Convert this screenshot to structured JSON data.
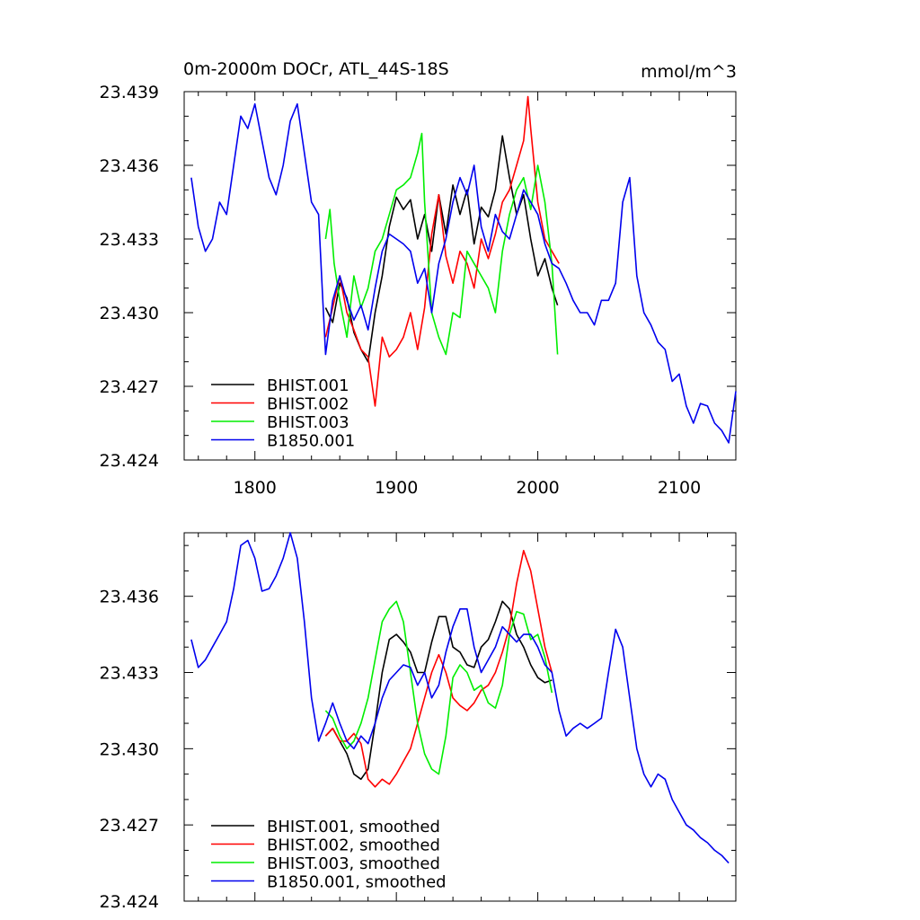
{
  "chart_data": [
    {
      "type": "line",
      "title": "0m-2000m DOCr, ATL_44S-18S",
      "units": "mmol/m^3",
      "xlim": [
        1750,
        2140
      ],
      "ylim": [
        23.424,
        23.439
      ],
      "xticks": [
        1800,
        1900,
        2000,
        2100
      ],
      "xtick_labels": [
        "1800",
        "1900",
        "2000",
        "2100"
      ],
      "yticks": [
        23.424,
        23.427,
        23.43,
        23.433,
        23.436,
        23.439
      ],
      "ytick_labels": [
        "23.424",
        "23.427",
        "23.430",
        "23.433",
        "23.436",
        "23.439"
      ],
      "legend_position": "bottom-left",
      "series": [
        {
          "name": "BHIST.001",
          "color": "#000000",
          "x": [
            1850,
            1855,
            1860,
            1865,
            1870,
            1875,
            1880,
            1885,
            1890,
            1895,
            1900,
            1905,
            1910,
            1915,
            1920,
            1925,
            1930,
            1935,
            1940,
            1945,
            1950,
            1955,
            1960,
            1965,
            1970,
            1975,
            1980,
            1985,
            1990,
            1995,
            2000,
            2005,
            2010,
            2014
          ],
          "y": [
            23.4302,
            23.4296,
            23.4312,
            23.4306,
            23.4292,
            23.4285,
            23.428,
            23.43,
            23.4315,
            23.4335,
            23.4347,
            23.4342,
            23.4346,
            23.433,
            23.434,
            23.4325,
            23.4348,
            23.4332,
            23.4352,
            23.434,
            23.435,
            23.4328,
            23.4343,
            23.4339,
            23.435,
            23.4372,
            23.4355,
            23.434,
            23.4348,
            23.433,
            23.4315,
            23.4322,
            23.431,
            23.4303
          ]
        },
        {
          "name": "BHIST.002",
          "color": "#ff0000",
          "x": [
            1850,
            1855,
            1860,
            1865,
            1870,
            1875,
            1880,
            1885,
            1890,
            1895,
            1900,
            1905,
            1910,
            1915,
            1920,
            1925,
            1930,
            1935,
            1940,
            1945,
            1950,
            1955,
            1960,
            1965,
            1970,
            1975,
            1980,
            1985,
            1990,
            1993,
            1995,
            2000,
            2005,
            2010,
            2015
          ],
          "y": [
            23.429,
            23.4302,
            23.4315,
            23.43,
            23.4293,
            23.4285,
            23.4282,
            23.4262,
            23.429,
            23.4282,
            23.4285,
            23.429,
            23.43,
            23.4285,
            23.4302,
            23.4332,
            23.4348,
            23.4323,
            23.4312,
            23.4325,
            23.432,
            23.431,
            23.433,
            23.4322,
            23.4332,
            23.4345,
            23.435,
            23.436,
            23.437,
            23.4388,
            23.4375,
            23.4345,
            23.433,
            23.4325,
            23.432
          ]
        },
        {
          "name": "BHIST.003",
          "color": "#00ee00",
          "x": [
            1850,
            1853,
            1856,
            1860,
            1865,
            1870,
            1875,
            1880,
            1885,
            1890,
            1895,
            1900,
            1905,
            1910,
            1915,
            1918,
            1920,
            1925,
            1930,
            1935,
            1940,
            1945,
            1950,
            1955,
            1960,
            1965,
            1970,
            1975,
            1980,
            1985,
            1990,
            1995,
            2000,
            2005,
            2010,
            2014
          ],
          "y": [
            23.433,
            23.4342,
            23.432,
            23.4305,
            23.429,
            23.4315,
            23.4302,
            23.431,
            23.4325,
            23.433,
            23.434,
            23.435,
            23.4352,
            23.4355,
            23.4365,
            23.4373,
            23.4345,
            23.43,
            23.429,
            23.4283,
            23.43,
            23.4298,
            23.4325,
            23.432,
            23.4315,
            23.431,
            23.43,
            23.4325,
            23.434,
            23.435,
            23.4355,
            23.4342,
            23.436,
            23.4345,
            23.432,
            23.4283
          ]
        },
        {
          "name": "B1850.001",
          "color": "#0000ee",
          "x": [
            1755,
            1760,
            1765,
            1770,
            1775,
            1780,
            1785,
            1790,
            1795,
            1800,
            1805,
            1810,
            1815,
            1820,
            1825,
            1830,
            1835,
            1840,
            1845,
            1848,
            1850,
            1855,
            1860,
            1865,
            1870,
            1875,
            1880,
            1885,
            1890,
            1895,
            1900,
            1905,
            1910,
            1915,
            1920,
            1925,
            1930,
            1935,
            1940,
            1945,
            1950,
            1955,
            1960,
            1965,
            1970,
            1975,
            1980,
            1985,
            1990,
            1995,
            2000,
            2005,
            2010,
            2015,
            2020,
            2025,
            2030,
            2035,
            2040,
            2045,
            2050,
            2055,
            2060,
            2065,
            2070,
            2075,
            2080,
            2085,
            2090,
            2095,
            2100,
            2105,
            2110,
            2115,
            2120,
            2125,
            2130,
            2135,
            2140
          ],
          "y": [
            23.4355,
            23.4335,
            23.4325,
            23.433,
            23.4345,
            23.434,
            23.436,
            23.438,
            23.4375,
            23.4385,
            23.437,
            23.4355,
            23.4348,
            23.436,
            23.4378,
            23.4385,
            23.4365,
            23.4345,
            23.434,
            23.4305,
            23.4283,
            23.4305,
            23.4315,
            23.4305,
            23.4297,
            23.4303,
            23.4293,
            23.431,
            23.4325,
            23.4332,
            23.433,
            23.4328,
            23.4325,
            23.4312,
            23.4318,
            23.43,
            23.432,
            23.433,
            23.4345,
            23.4355,
            23.4348,
            23.436,
            23.4335,
            23.4325,
            23.434,
            23.4333,
            23.433,
            23.434,
            23.435,
            23.4345,
            23.434,
            23.4328,
            23.432,
            23.4318,
            23.4312,
            23.4305,
            23.43,
            23.43,
            23.4295,
            23.4305,
            23.4305,
            23.4312,
            23.4345,
            23.4355,
            23.4315,
            23.43,
            23.4295,
            23.4288,
            23.4285,
            23.4272,
            23.4275,
            23.4262,
            23.4255,
            23.4263,
            23.4262,
            23.4255,
            23.4252,
            23.4247,
            23.4268
          ]
        }
      ]
    },
    {
      "type": "line",
      "xlim": [
        1750,
        2140
      ],
      "ylim": [
        23.424,
        23.4385
      ],
      "xticks": [
        1800,
        1900,
        2000,
        2100
      ],
      "yticks": [
        23.424,
        23.427,
        23.43,
        23.433,
        23.436
      ],
      "ytick_labels": [
        "23.424",
        "23.427",
        "23.430",
        "23.433",
        "23.436"
      ],
      "legend_position": "bottom-left",
      "series": [
        {
          "name": "BHIST.001, smoothed",
          "color": "#000000",
          "x": [
            1850,
            1855,
            1860,
            1865,
            1870,
            1875,
            1880,
            1885,
            1890,
            1895,
            1900,
            1905,
            1910,
            1915,
            1920,
            1925,
            1930,
            1935,
            1940,
            1945,
            1950,
            1955,
            1960,
            1965,
            1970,
            1975,
            1980,
            1985,
            1990,
            1995,
            2000,
            2005,
            2010
          ],
          "y": [
            23.4305,
            23.4308,
            23.4303,
            23.4298,
            23.429,
            23.4288,
            23.4292,
            23.431,
            23.433,
            23.4343,
            23.4345,
            23.4342,
            23.4338,
            23.433,
            23.433,
            23.4342,
            23.4352,
            23.4352,
            23.434,
            23.4338,
            23.4333,
            23.4332,
            23.434,
            23.4343,
            23.435,
            23.4358,
            23.4355,
            23.4345,
            23.434,
            23.4333,
            23.4328,
            23.4326,
            23.4327
          ]
        },
        {
          "name": "BHIST.002, smoothed",
          "color": "#ff0000",
          "x": [
            1850,
            1855,
            1860,
            1865,
            1870,
            1875,
            1880,
            1885,
            1890,
            1895,
            1900,
            1905,
            1910,
            1915,
            1920,
            1925,
            1930,
            1935,
            1940,
            1945,
            1950,
            1955,
            1960,
            1965,
            1970,
            1975,
            1980,
            1985,
            1990,
            1995,
            2000,
            2005,
            2010
          ],
          "y": [
            23.4305,
            23.4308,
            23.4303,
            23.4303,
            23.4306,
            23.4302,
            23.4288,
            23.4285,
            23.4288,
            23.4286,
            23.429,
            23.4295,
            23.43,
            23.431,
            23.432,
            23.433,
            23.4337,
            23.433,
            23.432,
            23.4317,
            23.4315,
            23.4318,
            23.4323,
            23.4325,
            23.433,
            23.4338,
            23.4348,
            23.4365,
            23.4378,
            23.437,
            23.4355,
            23.434,
            23.433
          ]
        },
        {
          "name": "BHIST.003, smoothed",
          "color": "#00ee00",
          "x": [
            1850,
            1855,
            1860,
            1865,
            1870,
            1875,
            1880,
            1885,
            1890,
            1895,
            1900,
            1905,
            1910,
            1915,
            1920,
            1925,
            1930,
            1935,
            1940,
            1945,
            1950,
            1955,
            1960,
            1965,
            1970,
            1975,
            1980,
            1985,
            1990,
            1995,
            2000,
            2005,
            2010
          ],
          "y": [
            23.4315,
            23.4312,
            23.4305,
            23.43,
            23.4303,
            23.431,
            23.432,
            23.4335,
            23.435,
            23.4355,
            23.4358,
            23.435,
            23.433,
            23.431,
            23.4298,
            23.4292,
            23.429,
            23.4305,
            23.4328,
            23.4333,
            23.433,
            23.4323,
            23.4325,
            23.4318,
            23.4316,
            23.4325,
            23.4345,
            23.4354,
            23.4353,
            23.4343,
            23.4345,
            23.4336,
            23.4322
          ]
        },
        {
          "name": "B1850.001, smoothed",
          "color": "#0000ee",
          "x": [
            1755,
            1760,
            1765,
            1770,
            1775,
            1780,
            1785,
            1790,
            1795,
            1800,
            1805,
            1810,
            1815,
            1820,
            1825,
            1830,
            1835,
            1840,
            1845,
            1850,
            1855,
            1860,
            1865,
            1870,
            1875,
            1880,
            1885,
            1890,
            1895,
            1900,
            1905,
            1910,
            1915,
            1920,
            1925,
            1930,
            1935,
            1940,
            1945,
            1950,
            1955,
            1960,
            1965,
            1970,
            1975,
            1980,
            1985,
            1990,
            1995,
            2000,
            2005,
            2010,
            2015,
            2020,
            2025,
            2030,
            2035,
            2040,
            2045,
            2050,
            2055,
            2060,
            2065,
            2070,
            2075,
            2080,
            2085,
            2090,
            2095,
            2100,
            2105,
            2110,
            2115,
            2120,
            2125,
            2130,
            2135
          ],
          "y": [
            23.4343,
            23.4332,
            23.4335,
            23.434,
            23.4345,
            23.435,
            23.4363,
            23.438,
            23.4382,
            23.4375,
            23.4362,
            23.4363,
            23.4368,
            23.4375,
            23.4385,
            23.4375,
            23.435,
            23.432,
            23.4303,
            23.431,
            23.4318,
            23.431,
            23.4303,
            23.43,
            23.4305,
            23.4302,
            23.431,
            23.432,
            23.4327,
            23.433,
            23.4333,
            23.4332,
            23.4325,
            23.433,
            23.432,
            23.4325,
            23.4338,
            23.4348,
            23.4355,
            23.4355,
            23.434,
            23.433,
            23.4335,
            23.434,
            23.4348,
            23.4345,
            23.4342,
            23.4345,
            23.4345,
            23.434,
            23.4333,
            23.433,
            23.4315,
            23.4305,
            23.4308,
            23.431,
            23.4308,
            23.431,
            23.4312,
            23.433,
            23.4347,
            23.434,
            23.432,
            23.43,
            23.429,
            23.4285,
            23.429,
            23.4288,
            23.428,
            23.4275,
            23.427,
            23.4268,
            23.4265,
            23.4263,
            23.426,
            23.4258,
            23.4255
          ]
        }
      ]
    }
  ]
}
